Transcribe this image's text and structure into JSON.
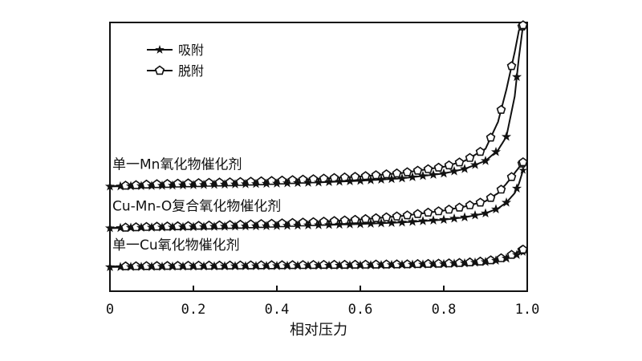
{
  "chart_data": {
    "type": "line",
    "xlabel": "相对压力",
    "ylabel": "",
    "xlim": [
      0,
      1.0
    ],
    "ylim": [
      0,
      100
    ],
    "grid": false,
    "legend_position": "top-left",
    "x_ticks": [
      "0",
      "0.2",
      "0.4",
      "0.6",
      "0.8",
      "1.0"
    ],
    "legend": [
      {
        "label": "吸附",
        "marker": "star-icon"
      },
      {
        "label": "脱附",
        "marker": "pentagon-icon"
      }
    ],
    "groups": [
      {
        "label": "单一Mn氧化物催化剂",
        "adsorption": [
          [
            0.0,
            39.0
          ],
          [
            0.05,
            39.1
          ],
          [
            0.1,
            39.2
          ],
          [
            0.2,
            39.5
          ],
          [
            0.3,
            39.8
          ],
          [
            0.4,
            40.1
          ],
          [
            0.5,
            40.5
          ],
          [
            0.6,
            41.1
          ],
          [
            0.7,
            42.0
          ],
          [
            0.8,
            43.8
          ],
          [
            0.85,
            45.5
          ],
          [
            0.9,
            48.5
          ],
          [
            0.93,
            52.5
          ],
          [
            0.95,
            57.5
          ],
          [
            0.97,
            72.5
          ],
          [
            0.98,
            87.0
          ],
          [
            0.99,
            99.0
          ]
        ],
        "desorption": [
          [
            0.0,
            39.0
          ],
          [
            0.1,
            39.8
          ],
          [
            0.2,
            40.2
          ],
          [
            0.3,
            40.6
          ],
          [
            0.4,
            41.1
          ],
          [
            0.5,
            41.8
          ],
          [
            0.6,
            42.7
          ],
          [
            0.7,
            44.0
          ],
          [
            0.8,
            46.3
          ],
          [
            0.85,
            48.5
          ],
          [
            0.9,
            53.0
          ],
          [
            0.93,
            63.0
          ],
          [
            0.95,
            75.0
          ],
          [
            0.97,
            89.0
          ],
          [
            0.98,
            97.0
          ],
          [
            0.99,
            99.0
          ]
        ]
      },
      {
        "label": "Cu-Mn-O复合氧化物催化剂",
        "adsorption": [
          [
            0.0,
            23.5
          ],
          [
            0.1,
            23.7
          ],
          [
            0.2,
            23.9
          ],
          [
            0.3,
            24.1
          ],
          [
            0.4,
            24.3
          ],
          [
            0.5,
            24.6
          ],
          [
            0.6,
            25.0
          ],
          [
            0.7,
            25.6
          ],
          [
            0.8,
            26.6
          ],
          [
            0.85,
            27.5
          ],
          [
            0.9,
            29.0
          ],
          [
            0.93,
            30.8
          ],
          [
            0.95,
            33.0
          ],
          [
            0.97,
            36.5
          ],
          [
            0.98,
            40.0
          ],
          [
            0.99,
            45.0
          ]
        ],
        "desorption": [
          [
            0.0,
            23.5
          ],
          [
            0.1,
            24.0
          ],
          [
            0.2,
            24.3
          ],
          [
            0.3,
            24.7
          ],
          [
            0.4,
            25.2
          ],
          [
            0.5,
            25.8
          ],
          [
            0.6,
            26.7
          ],
          [
            0.7,
            28.0
          ],
          [
            0.8,
            30.0
          ],
          [
            0.85,
            31.5
          ],
          [
            0.9,
            33.5
          ],
          [
            0.93,
            36.5
          ],
          [
            0.95,
            40.0
          ],
          [
            0.97,
            44.0
          ],
          [
            0.99,
            48.0
          ]
        ]
      },
      {
        "label": "单一Cu氧化物催化剂",
        "adsorption": [
          [
            0.0,
            9.0
          ],
          [
            0.1,
            9.1
          ],
          [
            0.2,
            9.2
          ],
          [
            0.3,
            9.3
          ],
          [
            0.4,
            9.4
          ],
          [
            0.5,
            9.5
          ],
          [
            0.6,
            9.6
          ],
          [
            0.7,
            9.8
          ],
          [
            0.8,
            10.1
          ],
          [
            0.85,
            10.4
          ],
          [
            0.9,
            10.9
          ],
          [
            0.93,
            11.5
          ],
          [
            0.95,
            12.2
          ],
          [
            0.97,
            13.2
          ],
          [
            0.99,
            14.5
          ]
        ],
        "desorption": [
          [
            0.0,
            9.2
          ],
          [
            0.1,
            9.4
          ],
          [
            0.2,
            9.5
          ],
          [
            0.3,
            9.6
          ],
          [
            0.4,
            9.7
          ],
          [
            0.5,
            9.8
          ],
          [
            0.6,
            9.9
          ],
          [
            0.7,
            10.0
          ],
          [
            0.8,
            10.3
          ],
          [
            0.85,
            10.6
          ],
          [
            0.9,
            11.2
          ],
          [
            0.93,
            12.0
          ],
          [
            0.95,
            12.8
          ],
          [
            0.97,
            14.0
          ],
          [
            0.99,
            15.5
          ]
        ]
      }
    ]
  }
}
